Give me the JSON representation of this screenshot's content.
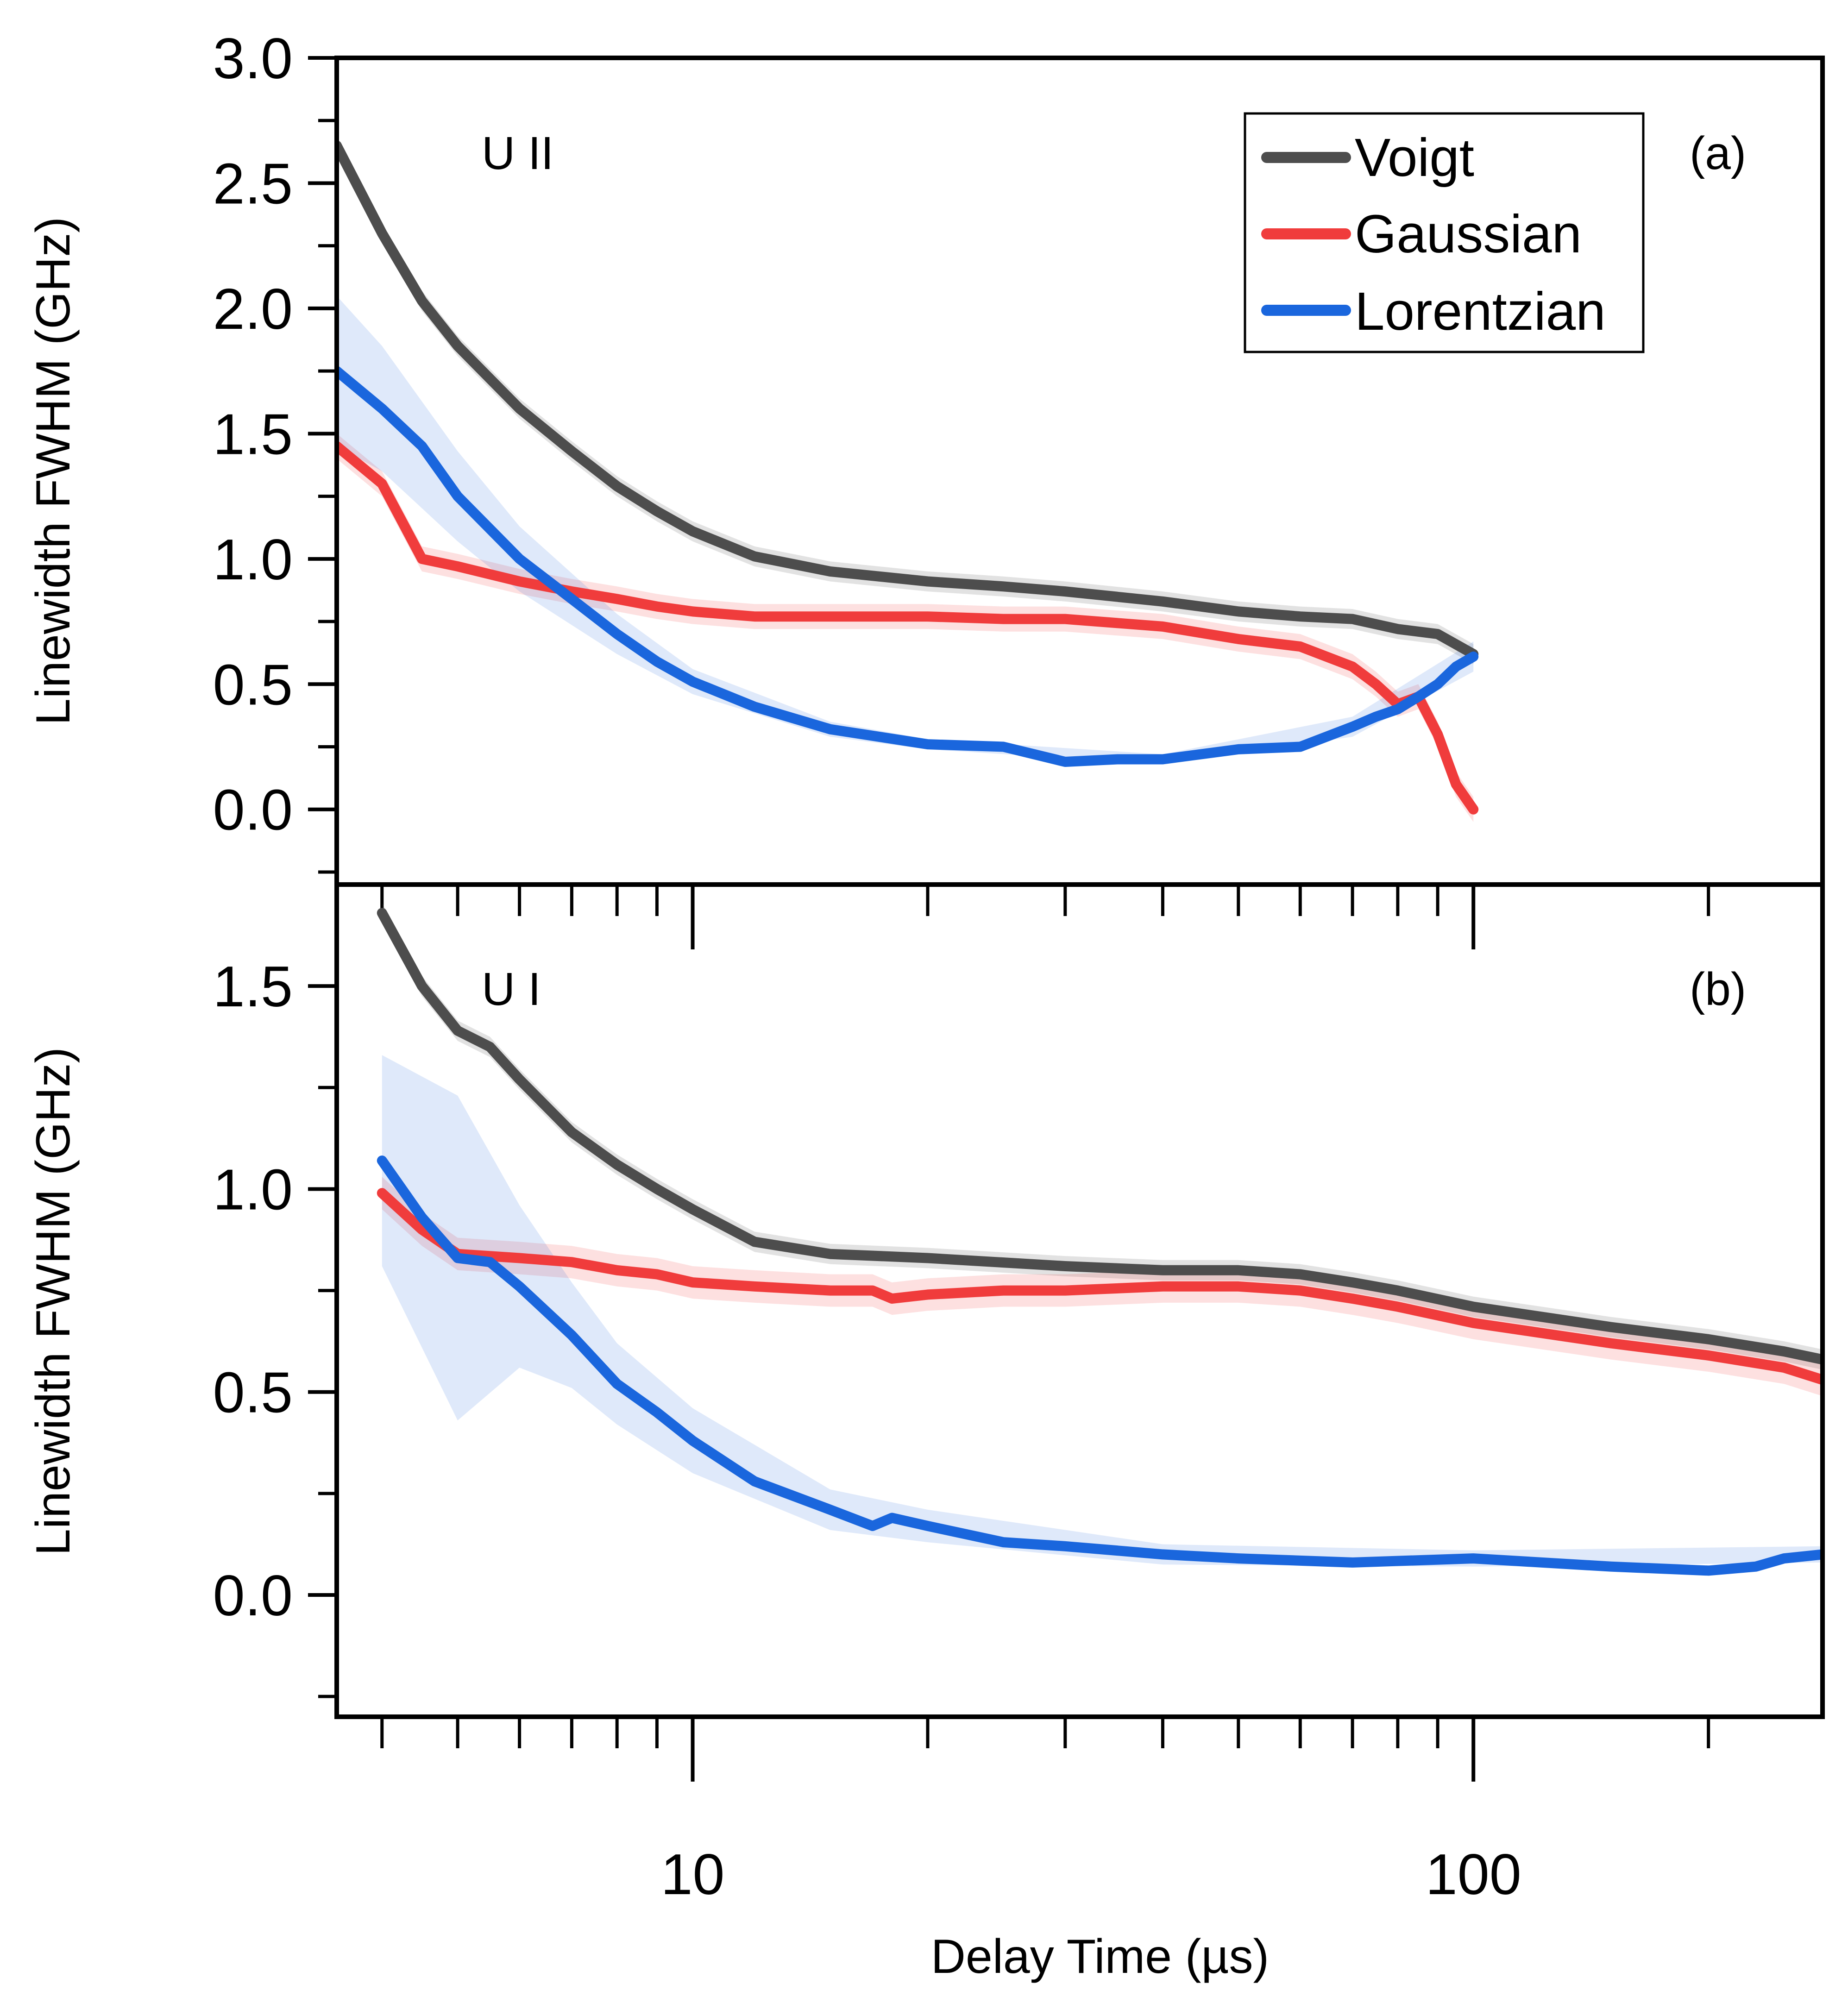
{
  "chart_data": {
    "type": "line",
    "x_scale": "log",
    "xlabel": "Delay Time (µs)",
    "xlim": [
      3.5,
      280
    ],
    "x_major_ticks": [
      10,
      100
    ],
    "x_tick_labels": [
      "10",
      "100"
    ],
    "x_minor_ticks": [
      4,
      5,
      6,
      7,
      8,
      9,
      20,
      30,
      40,
      50,
      60,
      70,
      80,
      90,
      200
    ],
    "colors": {
      "Voigt": "#4d4d4d",
      "Gaussian": "#f03c3c",
      "Lorentzian": "#1a66dd"
    },
    "legend": {
      "entries": [
        "Voigt",
        "Gaussian",
        "Lorentzian"
      ],
      "location": "top-right of panel (a)"
    },
    "panels": [
      {
        "id": "a",
        "label": "(a)",
        "species": "U II",
        "ylabel": "Linewidth FWHM (GHz)",
        "ylim": [
          -0.3,
          3.0
        ],
        "y_ticks": [
          0.0,
          0.5,
          1.0,
          1.5,
          2.0,
          2.5,
          3.0
        ],
        "y_tick_labels": [
          "0.0",
          "0.5",
          "1.0",
          "1.5",
          "2.0",
          "2.5",
          "3.0"
        ],
        "y_minor_ticks": [
          -0.25,
          0.25,
          0.75,
          1.25,
          1.75,
          2.25,
          2.75
        ],
        "series": [
          {
            "name": "Voigt",
            "x": [
              3.5,
              4,
              4.5,
              5,
              6,
              7,
              8,
              9,
              10,
              12,
              15,
              20,
              25,
              30,
              40,
              50,
              60,
              70,
              80,
              90,
              100
            ],
            "y": [
              2.65,
              2.3,
              2.03,
              1.85,
              1.6,
              1.43,
              1.29,
              1.19,
              1.11,
              1.01,
              0.95,
              0.91,
              0.89,
              0.87,
              0.83,
              0.79,
              0.77,
              0.76,
              0.72,
              0.7,
              0.62
            ],
            "band": 0.04
          },
          {
            "name": "Gaussian",
            "x": [
              3.5,
              4,
              4.5,
              5,
              6,
              7,
              8,
              9,
              10,
              12,
              15,
              20,
              25,
              30,
              40,
              50,
              60,
              70,
              75,
              80,
              85,
              90,
              95,
              100
            ],
            "y": [
              1.45,
              1.3,
              1.0,
              0.97,
              0.91,
              0.87,
              0.84,
              0.81,
              0.79,
              0.77,
              0.77,
              0.77,
              0.76,
              0.76,
              0.73,
              0.68,
              0.65,
              0.57,
              0.5,
              0.42,
              0.45,
              0.3,
              0.1,
              0.0
            ],
            "band": 0.05
          },
          {
            "name": "Lorentzian",
            "x": [
              3.5,
              4,
              4.5,
              5,
              6,
              7,
              8,
              9,
              10,
              12,
              15,
              20,
              25,
              30,
              35,
              40,
              50,
              60,
              70,
              75,
              80,
              85,
              90,
              95,
              100
            ],
            "y": [
              1.75,
              1.6,
              1.45,
              1.25,
              1.0,
              0.84,
              0.7,
              0.59,
              0.51,
              0.41,
              0.32,
              0.26,
              0.25,
              0.19,
              0.2,
              0.2,
              0.24,
              0.25,
              0.33,
              0.37,
              0.4,
              0.45,
              0.5,
              0.57,
              0.61
            ],
            "band_x": [
              3.5,
              4,
              5,
              6,
              8,
              10,
              15,
              20,
              40,
              70,
              100
            ],
            "band_w": [
              0.3,
              0.25,
              0.18,
              0.13,
              0.08,
              0.05,
              0.03,
              0.02,
              0.02,
              0.04,
              0.06
            ]
          }
        ]
      },
      {
        "id": "b",
        "label": "(b)",
        "species": "U I",
        "ylabel": "Linewidth FWHM (GHz)",
        "ylim": [
          -0.3,
          1.75
        ],
        "y_ticks": [
          0.0,
          0.5,
          1.0,
          1.5
        ],
        "y_tick_labels": [
          "0.0",
          "0.5",
          "1.0",
          "1.5"
        ],
        "y_minor_ticks": [
          -0.25,
          0.25,
          0.75,
          1.25
        ],
        "series": [
          {
            "name": "Voigt",
            "x": [
              4,
              4.5,
              5,
              5.5,
              6,
              7,
              8,
              9,
              10,
              12,
              15,
              20,
              30,
              40,
              50,
              60,
              70,
              80,
              100,
              150,
              200,
              250,
              280
            ],
            "y": [
              1.68,
              1.5,
              1.39,
              1.35,
              1.27,
              1.14,
              1.06,
              1.0,
              0.95,
              0.87,
              0.84,
              0.83,
              0.81,
              0.8,
              0.8,
              0.79,
              0.77,
              0.75,
              0.71,
              0.66,
              0.63,
              0.6,
              0.58
            ],
            "band": 0.025
          },
          {
            "name": "Gaussian",
            "x": [
              4,
              4.5,
              5,
              6,
              7,
              8,
              9,
              10,
              12,
              15,
              17,
              18,
              20,
              25,
              30,
              40,
              50,
              60,
              70,
              80,
              100,
              150,
              200,
              250,
              280
            ],
            "y": [
              0.99,
              0.9,
              0.84,
              0.83,
              0.82,
              0.8,
              0.79,
              0.77,
              0.76,
              0.75,
              0.75,
              0.73,
              0.74,
              0.75,
              0.75,
              0.76,
              0.76,
              0.75,
              0.73,
              0.71,
              0.67,
              0.62,
              0.59,
              0.56,
              0.53
            ],
            "band": 0.04
          },
          {
            "name": "Lorentzian",
            "x": [
              4,
              4.5,
              5,
              5.5,
              6,
              7,
              8,
              9,
              10,
              12,
              15,
              17,
              18,
              20,
              25,
              30,
              40,
              50,
              70,
              100,
              150,
              200,
              230,
              250,
              280
            ],
            "y": [
              1.07,
              0.93,
              0.83,
              0.82,
              0.76,
              0.64,
              0.52,
              0.45,
              0.38,
              0.28,
              0.21,
              0.17,
              0.19,
              0.17,
              0.13,
              0.12,
              0.1,
              0.09,
              0.08,
              0.09,
              0.07,
              0.06,
              0.07,
              0.09,
              0.1
            ],
            "band_x": [
              4,
              5,
              6,
              7,
              8,
              10,
              15,
              20,
              40,
              100,
              280
            ],
            "band_w": [
              0.26,
              0.4,
              0.2,
              0.13,
              0.1,
              0.08,
              0.05,
              0.04,
              0.025,
              0.02,
              0.02
            ]
          }
        ]
      }
    ]
  }
}
